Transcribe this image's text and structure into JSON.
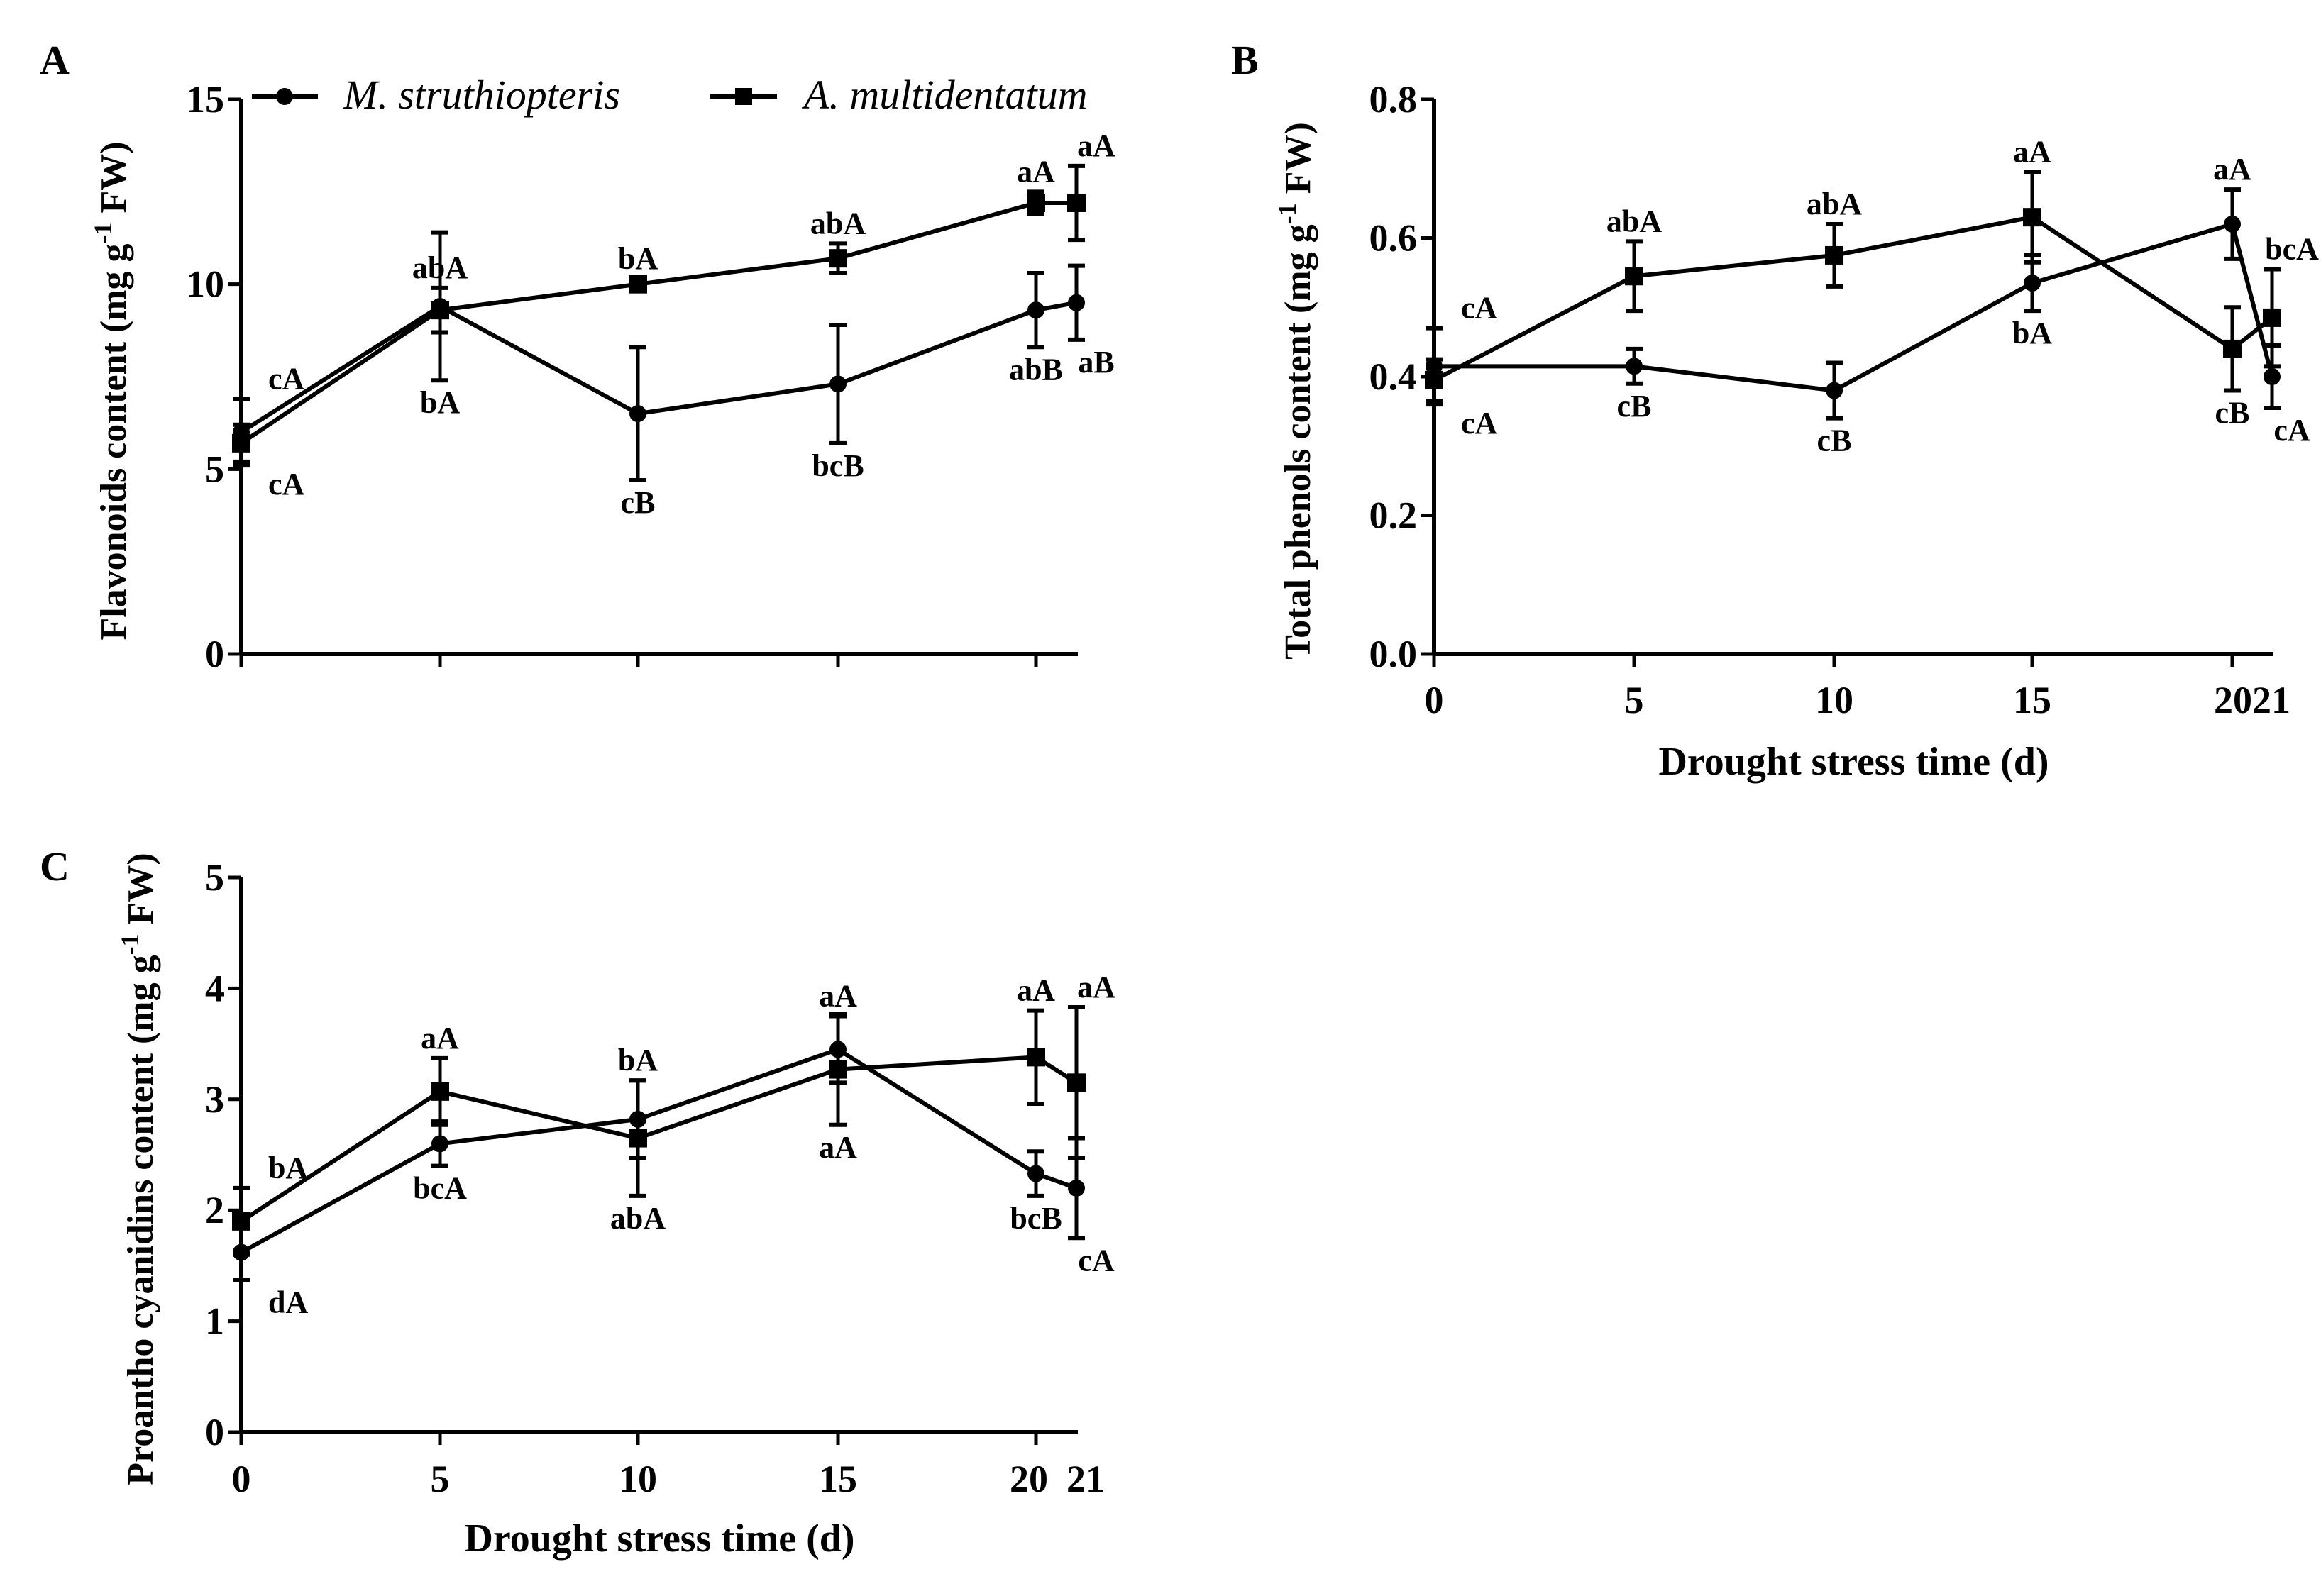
{
  "legend": [
    {
      "name": "M. struthiopteris",
      "marker": "circle"
    },
    {
      "name": "A. multidentatum",
      "marker": "square"
    }
  ],
  "chart_data": [
    {
      "panel": "A",
      "type": "line",
      "ylabel": {
        "pre": "Flavonoids content (mg g",
        "sup": "-1",
        "post": " FW)"
      },
      "xlabel": "",
      "x": [
        0,
        5,
        10,
        15,
        20,
        21
      ],
      "xticks": [],
      "ylim": [
        0,
        15
      ],
      "yticks": [
        "0",
        "5",
        "10",
        "15"
      ],
      "series": [
        {
          "name": "M. struthiopteris",
          "values": [
            6.0,
            9.4,
            6.5,
            7.3,
            9.3,
            9.5
          ],
          "errors": [
            0.9,
            2.0,
            1.8,
            1.6,
            1.0,
            1.0
          ],
          "labels": [
            "cA",
            "bA",
            "cB",
            "bcB",
            "abB",
            "aB"
          ],
          "label_pos": [
            "above",
            "below",
            "below",
            "below",
            "below",
            "below"
          ]
        },
        {
          "name": "A. multidentatum",
          "values": [
            5.7,
            9.3,
            10.0,
            10.7,
            12.2,
            12.2
          ],
          "errors": [
            0.5,
            0.6,
            0.15,
            0.4,
            0.3,
            1.0
          ],
          "labels": [
            "cA",
            "abA",
            "bA",
            "abA",
            "aA",
            "aA"
          ],
          "label_pos": [
            "below",
            "above",
            "above",
            "above",
            "above",
            "above"
          ]
        }
      ]
    },
    {
      "panel": "B",
      "type": "line",
      "ylabel": {
        "pre": "Total phenols content (mg g",
        "sup": "-1",
        "post": " FW)"
      },
      "xlabel": "Drought stress time (d)",
      "x": [
        0,
        5,
        10,
        15,
        20,
        21
      ],
      "xticks": [
        "0",
        "5",
        "10",
        "15",
        "2021"
      ],
      "ylim": [
        0,
        0.8
      ],
      "yticks": [
        "0.0",
        "0.2",
        "0.4",
        "0.6",
        "0.8"
      ],
      "series": [
        {
          "name": "M. struthiopteris",
          "values": [
            0.415,
            0.415,
            0.38,
            0.535,
            0.62,
            0.4
          ],
          "errors": [
            0.055,
            0.025,
            0.04,
            0.04,
            0.05,
            0.045
          ],
          "labels": [
            "cA",
            "cB",
            "cB",
            "bA",
            "aA",
            "cA"
          ],
          "label_pos": [
            "above",
            "below",
            "below",
            "below",
            "above",
            "below"
          ]
        },
        {
          "name": "A. multidentatum",
          "values": [
            0.395,
            0.545,
            0.575,
            0.63,
            0.44,
            0.485
          ],
          "errors": [
            0.03,
            0.05,
            0.045,
            0.065,
            0.06,
            0.07
          ],
          "labels": [
            "cA",
            "abA",
            "abA",
            "aA",
            "cB",
            "bcA"
          ],
          "label_pos": [
            "below",
            "above",
            "above",
            "above",
            "below",
            "above"
          ]
        }
      ]
    },
    {
      "panel": "C",
      "type": "line",
      "ylabel": {
        "pre": "Proantho cyanidins content (mg g",
        "sup": "-1",
        "post": " FW)"
      },
      "xlabel": "Drought stress time (d)",
      "x": [
        0,
        5,
        10,
        15,
        20,
        21
      ],
      "xticks": [
        "0",
        "5",
        "10",
        "15",
        "20",
        "21"
      ],
      "ylim": [
        0,
        5
      ],
      "yticks": [
        "0",
        "1",
        "2",
        "3",
        "4",
        "5"
      ],
      "series": [
        {
          "name": "M. struthiopteris",
          "values": [
            1.62,
            2.6,
            2.82,
            3.45,
            2.33,
            2.2
          ],
          "errors": [
            0.25,
            0.2,
            0.35,
            0.3,
            0.2,
            0.45
          ],
          "labels": [
            "dA",
            "bcA",
            "bA",
            "aA",
            "bcB",
            "cA"
          ],
          "label_pos": [
            "below",
            "below",
            "above",
            "above",
            "below",
            "below"
          ]
        },
        {
          "name": "A. multidentatum",
          "values": [
            1.9,
            3.07,
            2.65,
            3.27,
            3.38,
            3.15
          ],
          "errors": [
            0.3,
            0.3,
            0.52,
            0.5,
            0.42,
            0.68
          ],
          "labels": [
            "bA",
            "aA",
            "abA",
            "aA",
            "aA",
            "aA"
          ],
          "label_pos": [
            "above",
            "above",
            "below",
            "below",
            "above",
            "above"
          ]
        }
      ]
    }
  ]
}
